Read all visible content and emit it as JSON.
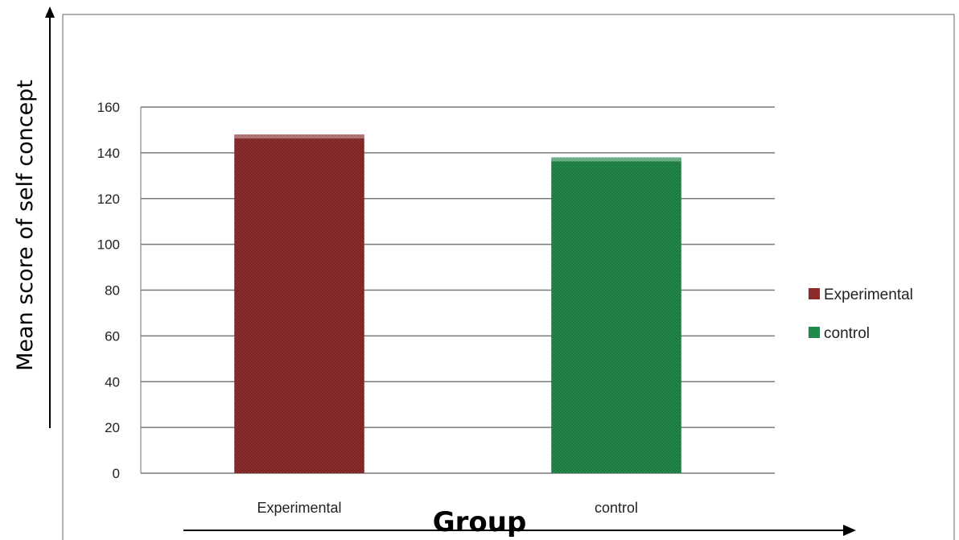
{
  "chart_data": {
    "type": "bar",
    "categories": [
      "Experimental",
      "control"
    ],
    "values": [
      148,
      138
    ],
    "colors": {
      "Experimental": "#8e2b2b",
      "control": "#1f8a4a"
    },
    "title": "",
    "xlabel": "Group",
    "ylabel": "Mean score of self concept",
    "ylim": [
      0,
      160
    ],
    "yticks": [
      0,
      20,
      40,
      60,
      80,
      100,
      120,
      140,
      160
    ],
    "grid": true,
    "legend": {
      "placement": "right",
      "entries": [
        "Experimental",
        "control"
      ]
    }
  }
}
